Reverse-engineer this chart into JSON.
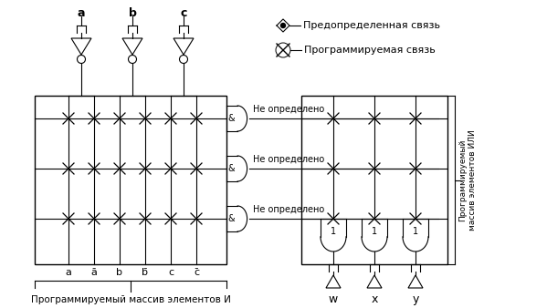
{
  "background_color": "#ffffff",
  "legend_dot_label": "Предопределенная связь",
  "legend_cross_label": "Программируемая связь",
  "bottom_label": "Программируемый массив элементов И",
  "right_label": "Программируемый\nмассив элементов ИЛИ",
  "input_bottom_labels": [
    "a",
    "ā",
    "b",
    "b̄",
    "c",
    "c̄"
  ],
  "top_labels": [
    "a",
    "b",
    "c"
  ],
  "output_labels": [
    "w",
    "x",
    "y"
  ],
  "figsize": [
    5.99,
    3.38
  ],
  "dpi": 100
}
